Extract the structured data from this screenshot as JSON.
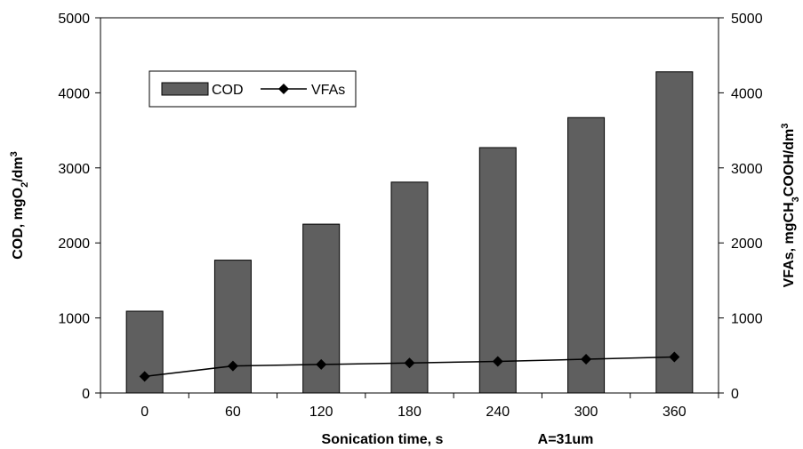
{
  "chart_data": {
    "type": "bar",
    "categories": [
      "0",
      "60",
      "120",
      "180",
      "240",
      "300",
      "360"
    ],
    "series": [
      {
        "name": "COD",
        "type": "bar",
        "axis": "left",
        "color": "#5f5f5f",
        "values": [
          1090,
          1770,
          2250,
          2810,
          3270,
          3670,
          4280
        ]
      },
      {
        "name": "VFAs",
        "type": "line",
        "axis": "right",
        "color": "#000000",
        "marker": "diamond",
        "values": [
          220,
          360,
          380,
          400,
          420,
          450,
          480
        ]
      }
    ],
    "ylim_left": [
      0,
      5000
    ],
    "ylim_right": [
      0,
      5000
    ],
    "yticks_left": [
      "0",
      "1000",
      "2000",
      "3000",
      "4000",
      "5000"
    ],
    "yticks_right": [
      "0",
      "1000",
      "2000",
      "3000",
      "4000",
      "5000"
    ],
    "xlabel": "Sonication time, s",
    "annotation": "A=31um",
    "ylabel_left": {
      "main": "COD, mgO",
      "sub": "2",
      "rest": "/dm",
      "sup": "3"
    },
    "ylabel_right": {
      "main": "VFAs, mgCH",
      "sub": "3",
      "rest": "COOH/dm",
      "sup": "3"
    },
    "legend": {
      "position": "top-left",
      "entries": [
        "COD",
        "VFAs"
      ]
    },
    "grid": false
  }
}
